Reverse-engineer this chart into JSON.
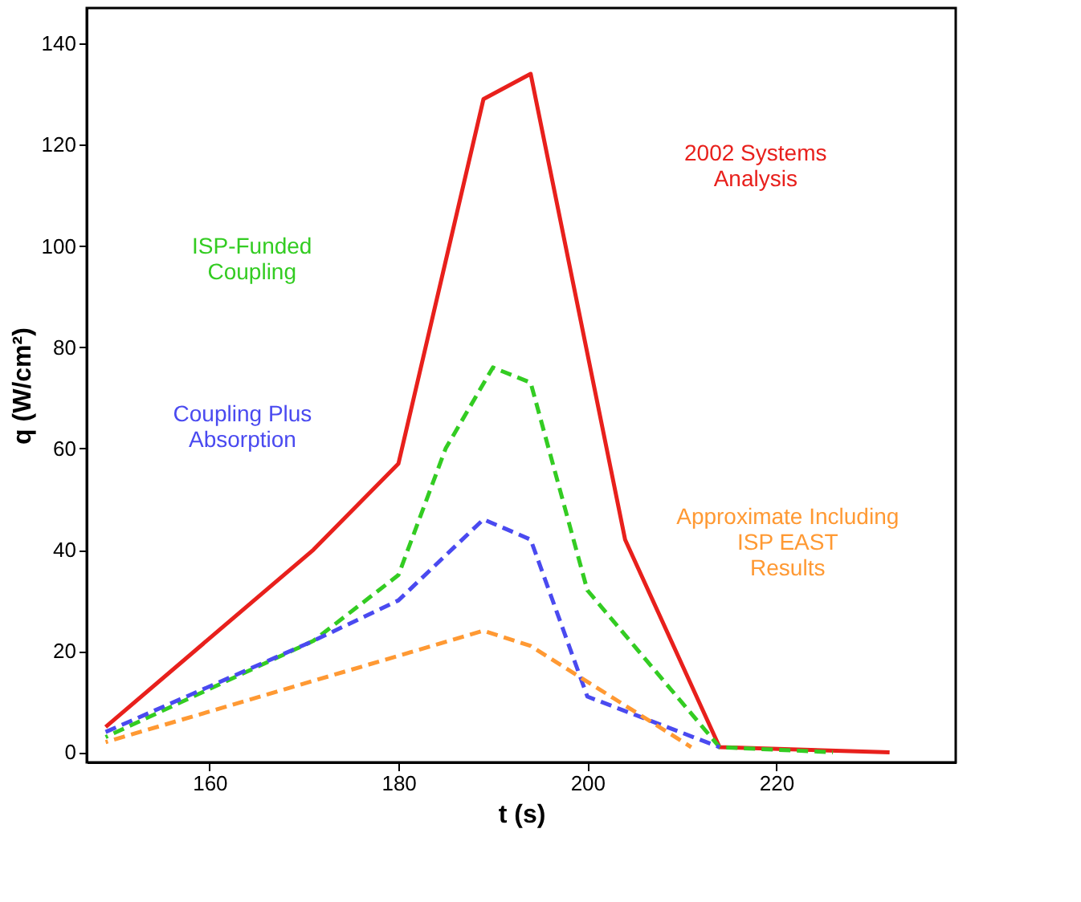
{
  "chart_data": {
    "type": "line",
    "xlabel": "t (s)",
    "ylabel": "q (W/cm²)",
    "xlim": [
      147,
      239
    ],
    "ylim": [
      -2,
      147
    ],
    "xticks": [
      160,
      180,
      200,
      220
    ],
    "yticks": [
      0,
      20,
      40,
      60,
      80,
      100,
      120,
      140
    ],
    "grid": false,
    "legend": false,
    "series": [
      {
        "name": "2002 Systems Analysis",
        "color": "#e8201c",
        "line_style": "solid",
        "x": [
          149,
          171,
          180,
          185,
          189,
          194,
          204,
          214,
          232
        ],
        "values": [
          5,
          40,
          57,
          97,
          129,
          134,
          42,
          1,
          0
        ]
      },
      {
        "name": "ISP-Funded Coupling",
        "color": "#33cc22",
        "line_style": "dashed",
        "x": [
          149,
          171,
          180,
          185,
          190,
          194,
          200,
          214,
          226
        ],
        "values": [
          3,
          22,
          35,
          60,
          76,
          73,
          32,
          1,
          0
        ]
      },
      {
        "name": "Coupling Plus Absorption",
        "color": "#4a4af0",
        "line_style": "dashed",
        "x": [
          149,
          171,
          180,
          189,
          194,
          200,
          214
        ],
        "values": [
          4,
          22,
          30,
          46,
          42,
          11,
          1
        ]
      },
      {
        "name": "Approximate Including ISP EAST Results",
        "color": "#ff9933",
        "line_style": "dashed",
        "x": [
          149,
          189,
          194,
          211
        ],
        "values": [
          2,
          24,
          21,
          1
        ]
      }
    ]
  }
}
